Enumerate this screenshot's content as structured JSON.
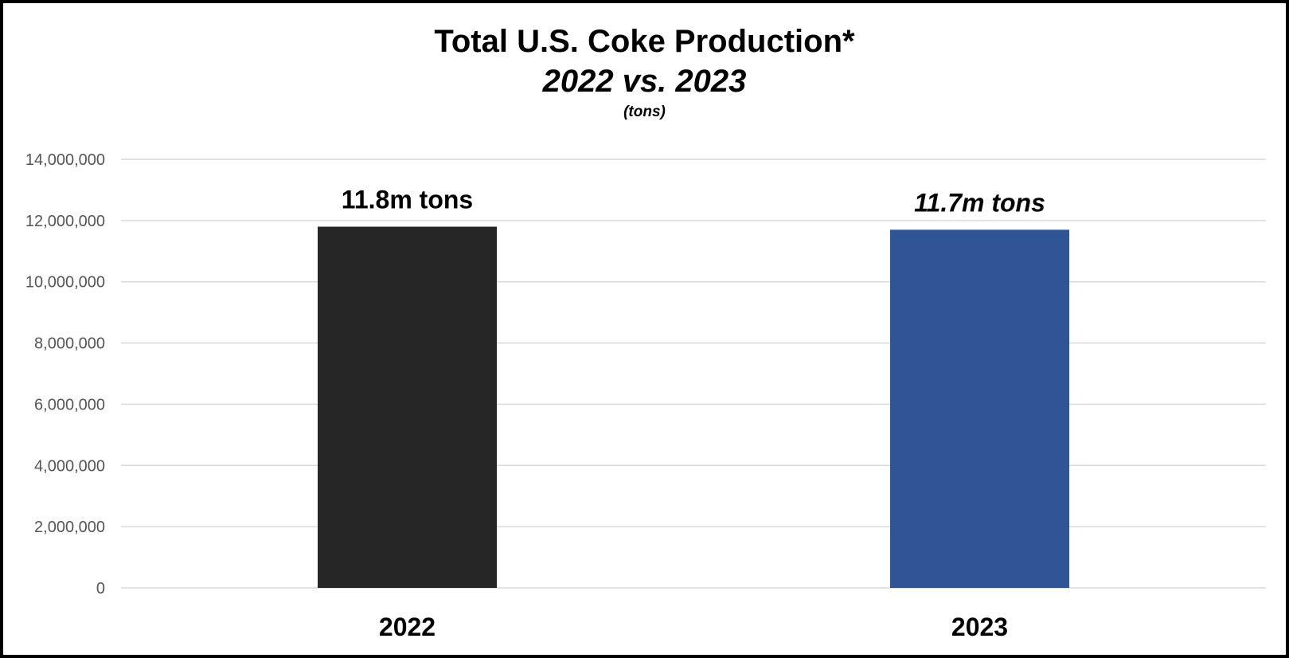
{
  "chart_data": {
    "type": "bar",
    "title": "Total U.S. Coke Production*",
    "subtitle": "2022 vs. 2023",
    "unit_note": "(tons)",
    "categories": [
      "2022",
      "2023"
    ],
    "values": [
      11800000,
      11700000
    ],
    "data_labels": [
      "11.8m tons",
      "11.7m tons"
    ],
    "bar_colors": [
      "#262626",
      "#2F5597"
    ],
    "ylim": [
      0,
      14000000
    ],
    "yticks": [
      0,
      2000000,
      4000000,
      6000000,
      8000000,
      10000000,
      12000000,
      14000000
    ],
    "ytick_labels": [
      "0",
      "2,000,000",
      "4,000,000",
      "6,000,000",
      "8,000,000",
      "10,000,000",
      "12,000,000",
      "14,000,000"
    ],
    "grid": true,
    "legend": "none",
    "xlabel": "",
    "ylabel": ""
  }
}
